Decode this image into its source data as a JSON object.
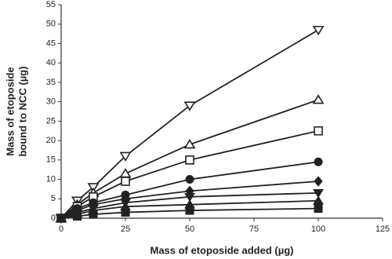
{
  "chart_data": {
    "type": "line",
    "x_label": "Mass of etoposide added (µg)",
    "y_label": [
      "Mass of etoposide",
      "bound to NCC (µg)"
    ],
    "x": [
      0,
      6.25,
      12.5,
      25,
      50,
      100
    ],
    "xlim": [
      0,
      125
    ],
    "xticks": [
      0,
      25,
      50,
      75,
      100,
      125
    ],
    "ylim": [
      0,
      55
    ],
    "yticks": [
      0,
      5,
      10,
      15,
      20,
      25,
      30,
      35,
      40,
      45,
      50,
      55
    ],
    "grid": false,
    "series": [
      {
        "color": "#222222",
        "marker": "open-triangle-down",
        "values": [
          0,
          4.5,
          8,
          16,
          29,
          48.5
        ]
      },
      {
        "color": "#222222",
        "marker": "open-triangle-up",
        "values": [
          0,
          3.5,
          6.5,
          11.5,
          19,
          30.5
        ]
      },
      {
        "color": "#222222",
        "marker": "open-square",
        "values": [
          0,
          3,
          5.5,
          9.5,
          15,
          22.5
        ]
      },
      {
        "color": "#222222",
        "marker": "circle",
        "values": [
          0,
          2.5,
          4,
          6,
          10,
          14.5
        ]
      },
      {
        "color": "#222222",
        "marker": "diamond",
        "values": [
          0,
          2,
          3.5,
          5,
          7,
          9.5
        ]
      },
      {
        "color": "#222222",
        "marker": "triangle-down",
        "values": [
          0,
          1.5,
          2.5,
          4,
          5.5,
          6.5
        ]
      },
      {
        "color": "#222222",
        "marker": "triangle-up",
        "values": [
          0,
          1,
          2,
          3,
          3.5,
          4.5
        ]
      },
      {
        "color": "#222222",
        "marker": "square",
        "values": [
          0,
          0.5,
          1,
          1.5,
          2,
          2.5
        ]
      }
    ]
  }
}
